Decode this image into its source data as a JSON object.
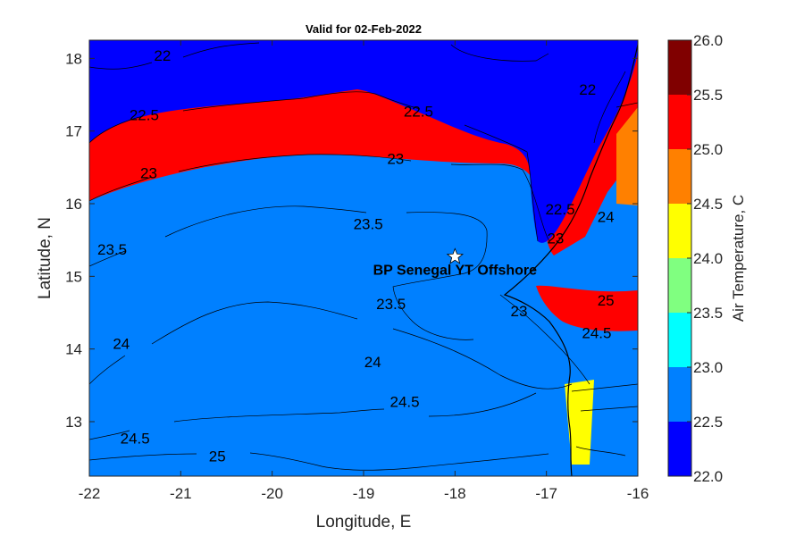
{
  "chart_data": {
    "type": "heatmap",
    "title": "Valid for 02-Feb-2022",
    "xlabel": "Longitude, E",
    "ylabel": "Latitude, N",
    "xlim": [
      -22,
      -16
    ],
    "ylim": [
      12.25,
      18.25
    ],
    "xticks": [
      -22,
      -21,
      -20,
      -19,
      -18,
      -17,
      -16
    ],
    "yticks": [
      13,
      14,
      15,
      16,
      17,
      18
    ],
    "colorbar": {
      "title": "Air Temperature, C",
      "ticks": [
        "22.0",
        "22.5",
        "23.0",
        "23.5",
        "24.0",
        "24.5",
        "25.0",
        "25.5",
        "26.0"
      ],
      "levels": [
        22.0,
        22.5,
        23.0,
        23.5,
        24.0,
        24.5,
        25.0,
        25.5,
        26.0
      ],
      "colors": [
        "#0000ff",
        "#0080ff",
        "#00ffff",
        "#80ff80",
        "#ffff00",
        "#ff8000",
        "#ff0000",
        "#800000"
      ]
    },
    "contour_labels": [
      {
        "text": "22",
        "lon": -21.2,
        "lat": 17.97
      },
      {
        "text": "22",
        "lon": -16.55,
        "lat": 17.5
      },
      {
        "text": "22.5",
        "lon": -21.4,
        "lat": 17.15
      },
      {
        "text": "22.5",
        "lon": -18.4,
        "lat": 17.2
      },
      {
        "text": "22.5",
        "lon": -16.85,
        "lat": 15.85
      },
      {
        "text": "23",
        "lon": -21.35,
        "lat": 16.35
      },
      {
        "text": "23",
        "lon": -18.65,
        "lat": 16.55
      },
      {
        "text": "23",
        "lon": -16.9,
        "lat": 15.45
      },
      {
        "text": "23",
        "lon": -17.3,
        "lat": 14.45
      },
      {
        "text": "23.5",
        "lon": -21.75,
        "lat": 15.3
      },
      {
        "text": "23.5",
        "lon": -18.95,
        "lat": 15.65
      },
      {
        "text": "23.5",
        "lon": -18.7,
        "lat": 14.55
      },
      {
        "text": "24",
        "lon": -21.65,
        "lat": 14.0
      },
      {
        "text": "24",
        "lon": -18.9,
        "lat": 13.75
      },
      {
        "text": "24",
        "lon": -16.35,
        "lat": 15.75
      },
      {
        "text": "24.5",
        "lon": -18.55,
        "lat": 13.2
      },
      {
        "text": "24.5",
        "lon": -21.5,
        "lat": 12.7
      },
      {
        "text": "24.5",
        "lon": -16.45,
        "lat": 14.15
      },
      {
        "text": "25",
        "lon": -20.6,
        "lat": 12.45
      },
      {
        "text": "25",
        "lon": -16.35,
        "lat": 14.6
      }
    ],
    "site": {
      "name": "BP Senegal YT Offshore",
      "lon": -18.0,
      "lat": 15.27
    }
  }
}
